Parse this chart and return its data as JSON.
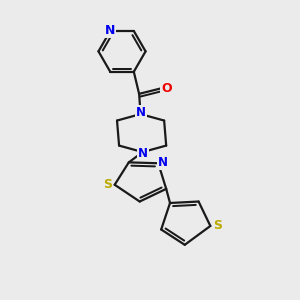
{
  "bg_color": "#ebebeb",
  "bond_color": "#1a1a1a",
  "N_color": "#0000ee",
  "O_color": "#ee0000",
  "S_color": "#bbaa00",
  "line_width": 1.6,
  "figsize": [
    3.0,
    3.0
  ],
  "dpi": 100,
  "xlim": [
    0,
    10
  ],
  "ylim": [
    0,
    10
  ]
}
